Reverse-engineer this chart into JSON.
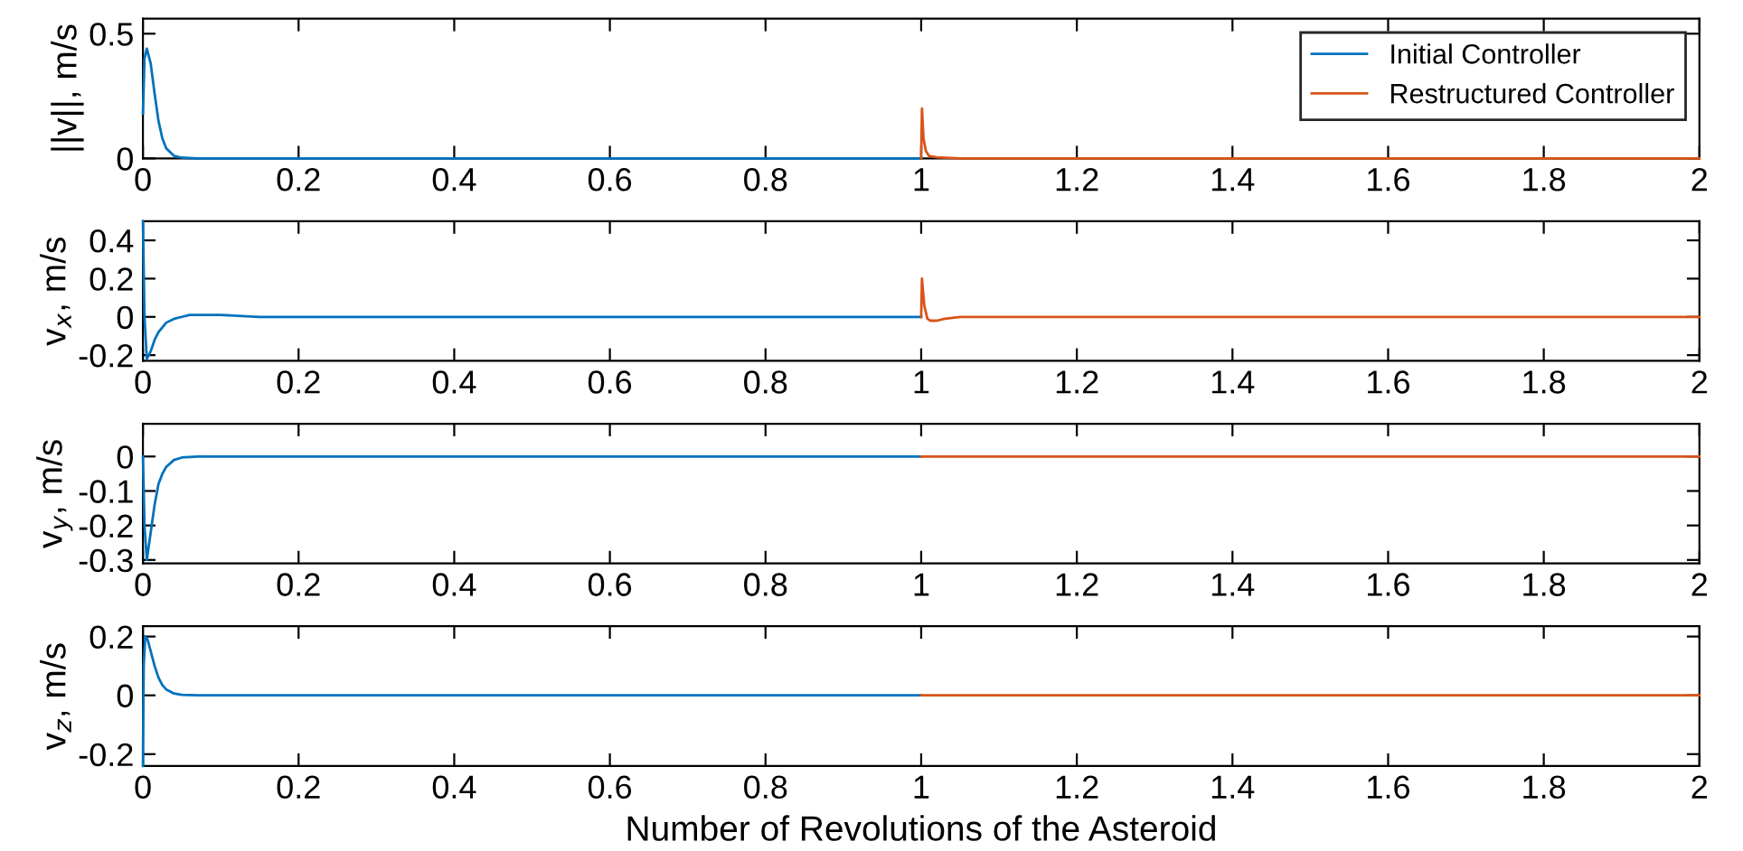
{
  "chart_data": [
    {
      "type": "line",
      "ylabel": "||v||, m/s",
      "xlim": [
        0,
        2
      ],
      "xticks": [
        0,
        0.2,
        0.4,
        0.6,
        0.8,
        1,
        1.2,
        1.4,
        1.6,
        1.8,
        2
      ],
      "ylim": [
        0,
        0.56
      ],
      "yticks": [
        0,
        0.5
      ],
      "legend": "top right",
      "line_style": "solid",
      "series": [
        {
          "name": "Initial Controller",
          "color": "#0072bd",
          "x": [
            0,
            0.002,
            0.005,
            0.01,
            0.015,
            0.02,
            0.025,
            0.03,
            0.04,
            0.05,
            0.07,
            0.1,
            0.5,
            1
          ],
          "values": [
            0.18,
            0.4,
            0.44,
            0.38,
            0.26,
            0.15,
            0.08,
            0.04,
            0.01,
            0.003,
            0,
            0,
            0,
            0
          ]
        },
        {
          "name": "Restructured Controller",
          "color": "#d95319",
          "x": [
            1,
            1.001,
            1.003,
            1.006,
            1.01,
            1.02,
            1.05,
            1.5,
            2
          ],
          "values": [
            0,
            0.2,
            0.08,
            0.03,
            0.01,
            0.004,
            0,
            0,
            0
          ]
        }
      ]
    },
    {
      "type": "line",
      "ylabel": "v$_{x}$, m/s",
      "xlim": [
        0,
        2
      ],
      "xticks": [
        0,
        0.2,
        0.4,
        0.6,
        0.8,
        1,
        1.2,
        1.4,
        1.6,
        1.8,
        2
      ],
      "ylim": [
        -0.23,
        0.5
      ],
      "yticks": [
        {
          "value": -0.2,
          "label": "-0.2"
        },
        0,
        0.2,
        0.4
      ],
      "line_style": "solid",
      "series": [
        {
          "color": "#0072bd",
          "x": [
            0,
            0.002,
            0.005,
            0.01,
            0.015,
            0.02,
            0.03,
            0.04,
            0.05,
            0.06,
            0.08,
            0.1,
            0.15,
            0.5,
            1
          ],
          "values": [
            0.5,
            0.0,
            -0.22,
            -0.18,
            -0.12,
            -0.08,
            -0.03,
            -0.01,
            0,
            0.01,
            0.01,
            0.01,
            0,
            0,
            0
          ]
        },
        {
          "color": "#d95319",
          "x": [
            1,
            1.001,
            1.004,
            1.008,
            1.012,
            1.02,
            1.03,
            1.05,
            1.1,
            1.5,
            2
          ],
          "values": [
            0,
            0.2,
            0.06,
            -0.01,
            -0.02,
            -0.02,
            -0.01,
            0,
            0,
            0,
            0
          ]
        }
      ]
    },
    {
      "type": "line",
      "ylabel": "v$_{y}$, m/s",
      "xlim": [
        0,
        2
      ],
      "xticks": [
        0,
        0.2,
        0.4,
        0.6,
        0.8,
        1,
        1.2,
        1.4,
        1.6,
        1.8,
        2
      ],
      "ylim": [
        -0.31,
        0.095
      ],
      "yticks": [
        {
          "value": -0.3,
          "label": "-0.3"
        },
        {
          "value": -0.2,
          "label": "-0.2"
        },
        {
          "value": -0.1,
          "label": "-0.1"
        },
        0
      ],
      "line_style": "solid",
      "series": [
        {
          "color": "#0072bd",
          "x": [
            0,
            0.002,
            0.005,
            0.01,
            0.015,
            0.02,
            0.025,
            0.03,
            0.04,
            0.05,
            0.07,
            0.1,
            0.5,
            1
          ],
          "values": [
            0,
            -0.2,
            -0.3,
            -0.22,
            -0.14,
            -0.08,
            -0.05,
            -0.03,
            -0.01,
            -0.003,
            0,
            0,
            0,
            0
          ]
        },
        {
          "color": "#d95319",
          "x": [
            1,
            1.5,
            2
          ],
          "values": [
            0,
            0,
            0
          ]
        }
      ]
    },
    {
      "type": "line",
      "ylabel": "v$_{z}$, m/s",
      "xlabel": "Number of Revolutions of the Asteroid",
      "xlim": [
        0,
        2
      ],
      "xticks": [
        0,
        0.2,
        0.4,
        0.6,
        0.8,
        1,
        1.2,
        1.4,
        1.6,
        1.8,
        2
      ],
      "ylim": [
        -0.24,
        0.235
      ],
      "yticks": [
        {
          "value": -0.2,
          "label": "-0.2"
        },
        0,
        0.2
      ],
      "line_style": "solid",
      "series": [
        {
          "color": "#0072bd",
          "x": [
            0,
            0.001,
            0.003,
            0.006,
            0.01,
            0.015,
            0.02,
            0.025,
            0.03,
            0.04,
            0.05,
            0.07,
            0.1,
            0.5,
            1
          ],
          "values": [
            -0.24,
            0.1,
            0.2,
            0.19,
            0.15,
            0.1,
            0.06,
            0.035,
            0.02,
            0.006,
            0.002,
            0,
            0,
            0,
            0
          ]
        },
        {
          "color": "#d95319",
          "x": [
            1,
            1.5,
            2
          ],
          "values": [
            0,
            0,
            0
          ]
        }
      ]
    }
  ]
}
